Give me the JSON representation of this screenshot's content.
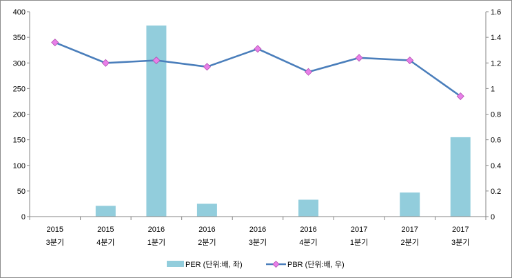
{
  "chart_data": {
    "type": "bar+line",
    "categories": [
      [
        "2015",
        "3분기"
      ],
      [
        "2015",
        "4분기"
      ],
      [
        "2016",
        "1분기"
      ],
      [
        "2016",
        "2분기"
      ],
      [
        "2016",
        "3분기"
      ],
      [
        "2016",
        "4분기"
      ],
      [
        "2017",
        "1분기"
      ],
      [
        "2017",
        "2분기"
      ],
      [
        "2017",
        "3분기"
      ]
    ],
    "series": [
      {
        "name": "PER (단위:배, 좌)",
        "type": "bar",
        "axis": "left",
        "color": "#92cddc",
        "values": [
          null,
          21,
          373,
          25,
          null,
          33,
          null,
          47,
          155
        ]
      },
      {
        "name": "PBR (단위:배, 우)",
        "type": "line",
        "axis": "right",
        "color": "#4a7ebb",
        "marker_color": "#e87fe8",
        "values": [
          1.36,
          1.2,
          1.22,
          1.17,
          1.31,
          1.13,
          1.24,
          1.22,
          0.94
        ]
      }
    ],
    "y_left": {
      "min": 0,
      "max": 400,
      "ticks": [
        "0",
        "50",
        "100",
        "150",
        "200",
        "250",
        "300",
        "350",
        "400"
      ]
    },
    "y_right": {
      "min": 0,
      "max": 1.6,
      "ticks": [
        "0",
        "0.2",
        "0.4",
        "0.6",
        "0.8",
        "1",
        "1.2",
        "1.4",
        "1.6"
      ]
    },
    "grid": false,
    "legend_position": "bottom"
  }
}
